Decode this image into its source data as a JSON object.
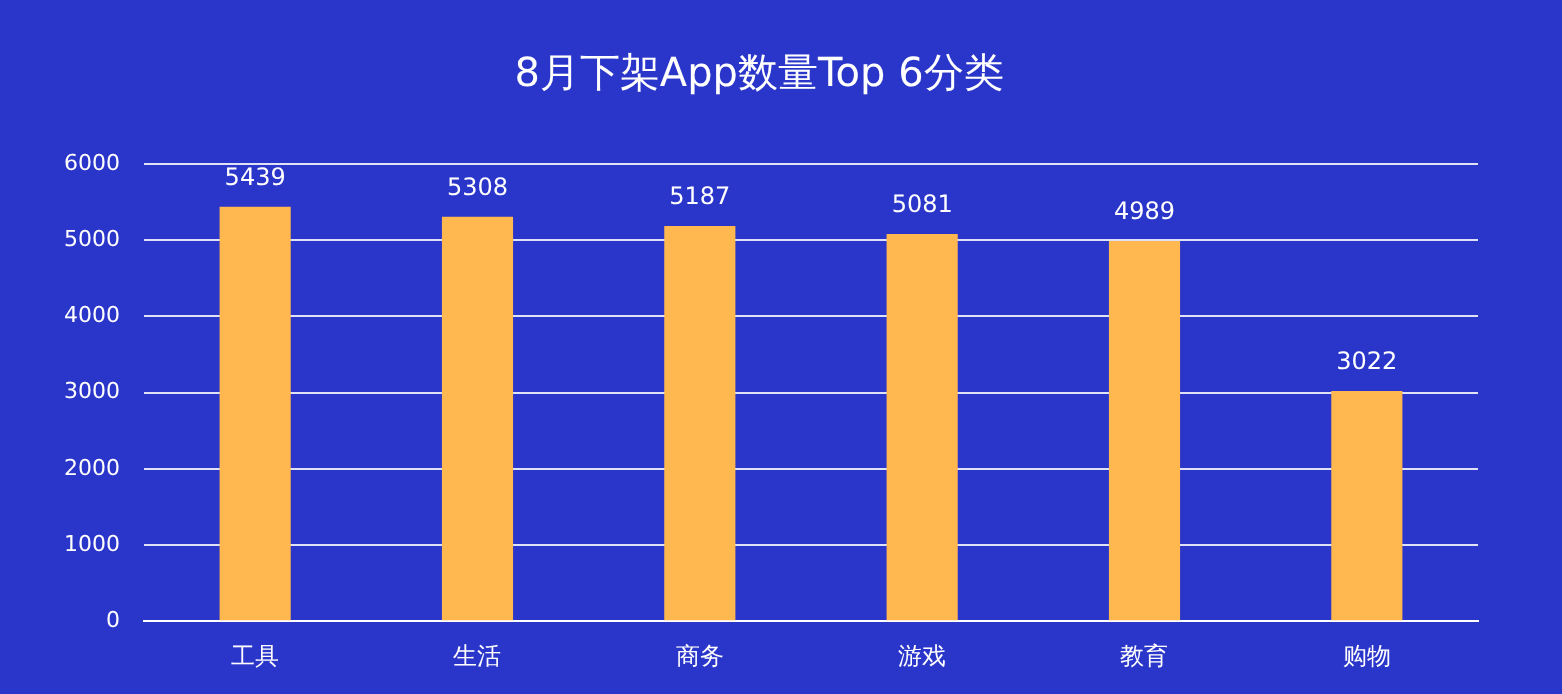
{
  "chart_data": {
    "type": "bar",
    "title": "8月下架App数量Top 6分类",
    "categories": [
      "工具",
      "生活",
      "商务",
      "游戏",
      "教育",
      "购物"
    ],
    "values": [
      5439,
      5308,
      5187,
      5081,
      4989,
      3022
    ],
    "color": "#ffb74f",
    "ylim": [
      0,
      6000
    ],
    "yticks": [
      0,
      1000,
      2000,
      3000,
      4000,
      5000,
      6000
    ],
    "grid": "y",
    "legend": false,
    "data_labels": true
  }
}
